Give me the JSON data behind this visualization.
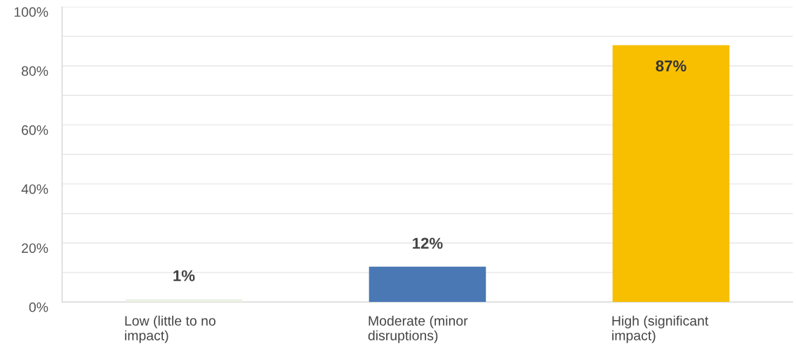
{
  "chart_data": {
    "type": "bar",
    "categories": [
      "Low (little to no impact)",
      "Moderate (minor disruptions)",
      "High (significant impact)"
    ],
    "values": [
      1,
      12,
      87
    ],
    "colors": [
      "#eef3e6",
      "#4a78b5",
      "#f7bf00"
    ],
    "value_labels": [
      "1%",
      "12%",
      "87%"
    ],
    "ylim": [
      0,
      100
    ],
    "yticks": [
      {
        "value": 0,
        "label": "0%"
      },
      {
        "value": 10,
        "label": null
      },
      {
        "value": 20,
        "label": "20%"
      },
      {
        "value": 30,
        "label": null
      },
      {
        "value": 40,
        "label": "40%"
      },
      {
        "value": 50,
        "label": null
      },
      {
        "value": 60,
        "label": "60%"
      },
      {
        "value": 70,
        "label": null
      },
      {
        "value": 80,
        "label": "80%"
      },
      {
        "value": 90,
        "label": null
      },
      {
        "value": 100,
        "label": "100%"
      }
    ],
    "grid": "y",
    "legend": false
  }
}
